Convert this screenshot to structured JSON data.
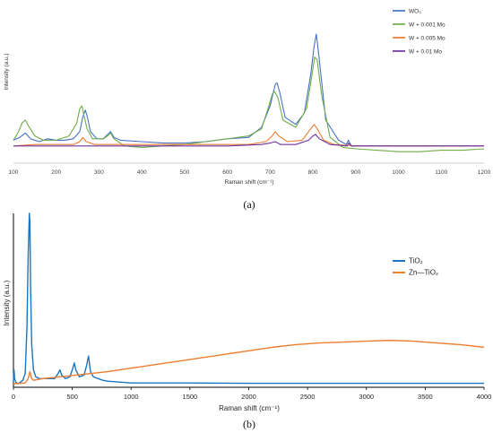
{
  "chart_data": [
    {
      "type": "line",
      "panel": "(a)",
      "xlabel": "Raman shift (cm⁻¹)",
      "ylabel": "Intensity  (a.u.)",
      "xlim": [
        100,
        1200
      ],
      "ylim": [
        0,
        100
      ],
      "xticks": [
        100,
        200,
        300,
        400,
        500,
        600,
        700,
        800,
        900,
        1000,
        1100,
        1200
      ],
      "grid": false,
      "legend_position": "top-right",
      "series": [
        {
          "name": "WO₃",
          "color": "#4472c4",
          "x": [
            100,
            115,
            128,
            140,
            160,
            180,
            200,
            220,
            240,
            255,
            262,
            268,
            273,
            280,
            295,
            310,
            320,
            327,
            335,
            350,
            400,
            450,
            500,
            550,
            600,
            650,
            680,
            700,
            712,
            716,
            722,
            735,
            760,
            780,
            795,
            803,
            808,
            815,
            830,
            860,
            878,
            883,
            890,
            950,
            1000,
            1100,
            1200
          ],
          "y": [
            16,
            18,
            21,
            17,
            15,
            17,
            16,
            16,
            17,
            22,
            32,
            37,
            32,
            22,
            17,
            17,
            20,
            22,
            18,
            16,
            15,
            14,
            14,
            15,
            17,
            18,
            25,
            40,
            55,
            56,
            50,
            32,
            27,
            35,
            62,
            82,
            90,
            72,
            30,
            16,
            13,
            16,
            12,
            12,
            12,
            12,
            12
          ]
        },
        {
          "name": "W + 0.001 Mo",
          "color": "#70ad47",
          "x": [
            100,
            112,
            120,
            128,
            135,
            150,
            170,
            200,
            230,
            248,
            255,
            260,
            265,
            272,
            285,
            310,
            320,
            327,
            335,
            360,
            400,
            450,
            500,
            550,
            600,
            650,
            680,
            695,
            705,
            710,
            718,
            730,
            760,
            785,
            797,
            804,
            810,
            820,
            840,
            870,
            900,
            950,
            1000,
            1050,
            1100,
            1150,
            1200
          ],
          "y": [
            16,
            22,
            28,
            30,
            26,
            19,
            16,
            16,
            19,
            28,
            38,
            40,
            33,
            24,
            17,
            17,
            19,
            21,
            17,
            12,
            11,
            12,
            13,
            15,
            17,
            19,
            24,
            38,
            48,
            50,
            46,
            30,
            25,
            38,
            60,
            74,
            72,
            48,
            18,
            11,
            10,
            9,
            8,
            8,
            9,
            9,
            10
          ]
        },
        {
          "name": "W + 0.005 Mo",
          "color": "#ed7d31",
          "x": [
            100,
            150,
            200,
            240,
            255,
            262,
            270,
            290,
            350,
            450,
            550,
            650,
            690,
            705,
            712,
            720,
            740,
            775,
            795,
            803,
            810,
            825,
            850,
            900,
            1000,
            1200
          ],
          "y": [
            12,
            13,
            13,
            13,
            15,
            18,
            15,
            13,
            13,
            13,
            13,
            13,
            15,
            19,
            22,
            19,
            15,
            16,
            24,
            27,
            24,
            16,
            13,
            12,
            12,
            12
          ]
        },
        {
          "name": "W + 0.01 Mo",
          "color": "#7030a0",
          "x": [
            100,
            200,
            300,
            400,
            500,
            600,
            680,
            700,
            712,
            725,
            760,
            790,
            800,
            806,
            815,
            840,
            880,
            883,
            890,
            1000,
            1200
          ],
          "y": [
            12,
            12,
            12,
            12,
            12,
            12,
            13,
            14,
            15,
            13,
            13,
            16,
            19,
            20,
            17,
            13,
            12,
            14,
            12,
            12,
            12
          ]
        }
      ]
    },
    {
      "type": "line",
      "panel": "(b)",
      "xlabel": "Raman shift (cm⁻¹)",
      "ylabel": "Intensity (a.u.)",
      "xlim": [
        0,
        4000
      ],
      "ylim": [
        0,
        100
      ],
      "xticks": [
        0,
        500,
        1000,
        1500,
        2000,
        2500,
        3000,
        3500,
        4000
      ],
      "grid": false,
      "legend_position": "right",
      "series": [
        {
          "name": "TiO₂",
          "color": "#1a75c2",
          "x": [
            0,
            5,
            10,
            20,
            40,
            60,
            80,
            100,
            115,
            125,
            135,
            140,
            145,
            155,
            170,
            190,
            220,
            260,
            300,
            350,
            380,
            395,
            410,
            440,
            480,
            505,
            517,
            530,
            560,
            600,
            620,
            638,
            655,
            680,
            720,
            760,
            800,
            900,
            1000,
            1500,
            2000,
            2500,
            3000,
            3500,
            4000
          ],
          "y": [
            3,
            10,
            5,
            3,
            2,
            3,
            4,
            8,
            35,
            75,
            100,
            95,
            60,
            25,
            10,
            6,
            5,
            5,
            5,
            5,
            8,
            10,
            7,
            5,
            6,
            11,
            14,
            10,
            6,
            7,
            12,
            18,
            9,
            6,
            5,
            4,
            3.5,
            3,
            2.5,
            2.5,
            2.3,
            2.3,
            2.3,
            2.3,
            2.3
          ]
        },
        {
          "name": "Zn—TiO₂",
          "color": "#ed7d31",
          "x": [
            0,
            100,
            125,
            140,
            155,
            170,
            250,
            400,
            600,
            800,
            1000,
            1200,
            1400,
            1600,
            1800,
            2000,
            2200,
            2400,
            2600,
            2800,
            3000,
            3200,
            3400,
            3600,
            3800,
            4000
          ],
          "y": [
            2,
            2.5,
            5,
            9,
            5,
            4,
            5,
            6,
            7.5,
            9,
            11,
            13,
            15,
            17,
            19,
            21,
            23,
            24.5,
            25.5,
            26,
            26.5,
            27,
            26.5,
            25.5,
            24.5,
            23
          ]
        }
      ]
    }
  ]
}
